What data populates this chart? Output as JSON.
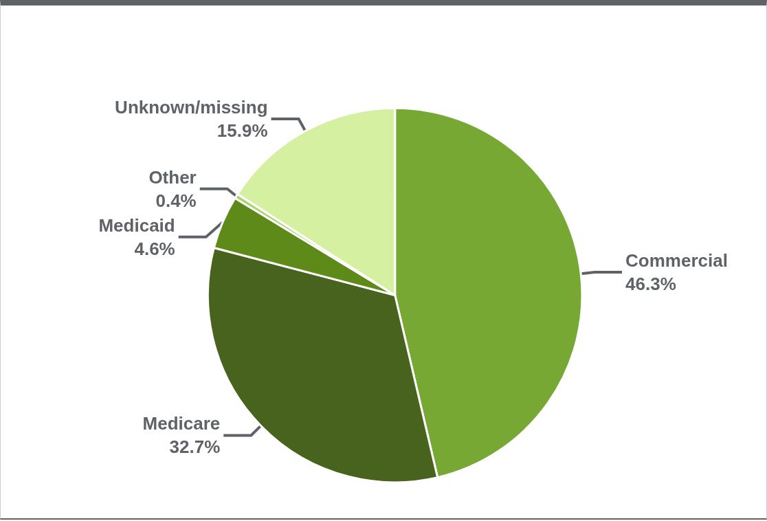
{
  "chart_data": {
    "type": "pie",
    "categories": [
      "Commercial",
      "Medicare",
      "Medicaid",
      "Other",
      "Unknown/missing"
    ],
    "values": [
      46.3,
      32.7,
      4.6,
      0.4,
      15.9
    ],
    "colors": [
      "#77a834",
      "#48631e",
      "#5e8a1a",
      "#a9d46a",
      "#d5f0a0"
    ],
    "value_labels": [
      "46.3%",
      "32.7%",
      "4.6%",
      "0.4%",
      "15.9%"
    ],
    "legend": false
  }
}
